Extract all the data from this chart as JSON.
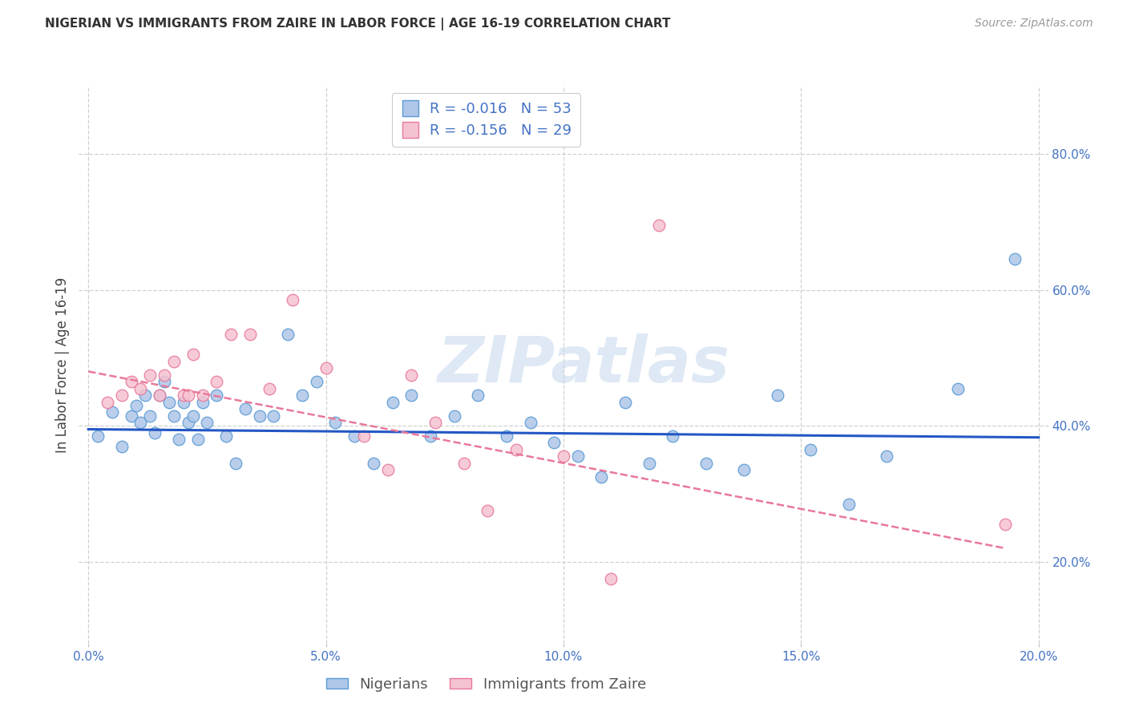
{
  "title": "NIGERIAN VS IMMIGRANTS FROM ZAIRE IN LABOR FORCE | AGE 16-19 CORRELATION CHART",
  "source": "Source: ZipAtlas.com",
  "ylabel": "In Labor Force | Age 16-19",
  "xlim": [
    -0.002,
    0.202
  ],
  "ylim": [
    0.08,
    0.9
  ],
  "xticks": [
    0.0,
    0.05,
    0.1,
    0.15,
    0.2
  ],
  "yticks": [
    0.2,
    0.4,
    0.6,
    0.8
  ],
  "xticklabels": [
    "0.0%",
    "5.0%",
    "10.0%",
    "15.0%",
    "20.0%"
  ],
  "yticklabels": [
    "20.0%",
    "40.0%",
    "60.0%",
    "80.0%"
  ],
  "blue_color": "#aec6e8",
  "blue_edge": "#5b9bd5",
  "pink_color": "#f5c2d0",
  "pink_edge": "#e8799a",
  "trend_blue": "#2457c5",
  "trend_pink": "#e8799a",
  "legend_blue_R": "R = -0.016",
  "legend_blue_N": "N = 53",
  "legend_pink_R": "R = -0.156",
  "legend_pink_N": "N = 29",
  "label_nigerians": "Nigerians",
  "label_zaire": "Immigrants from Zaire",
  "watermark": "ZIPatlas",
  "blue_x": [
    0.002,
    0.005,
    0.007,
    0.009,
    0.01,
    0.011,
    0.012,
    0.013,
    0.014,
    0.015,
    0.016,
    0.017,
    0.018,
    0.019,
    0.02,
    0.021,
    0.022,
    0.023,
    0.024,
    0.025,
    0.027,
    0.029,
    0.031,
    0.033,
    0.036,
    0.039,
    0.042,
    0.045,
    0.048,
    0.052,
    0.056,
    0.06,
    0.064,
    0.068,
    0.072,
    0.077,
    0.082,
    0.088,
    0.093,
    0.098,
    0.103,
    0.108,
    0.113,
    0.118,
    0.123,
    0.13,
    0.138,
    0.145,
    0.152,
    0.16,
    0.168,
    0.183,
    0.195
  ],
  "blue_y": [
    0.385,
    0.42,
    0.37,
    0.415,
    0.43,
    0.405,
    0.445,
    0.415,
    0.39,
    0.445,
    0.465,
    0.435,
    0.415,
    0.38,
    0.435,
    0.405,
    0.415,
    0.38,
    0.435,
    0.405,
    0.445,
    0.385,
    0.345,
    0.425,
    0.415,
    0.415,
    0.535,
    0.445,
    0.465,
    0.405,
    0.385,
    0.345,
    0.435,
    0.445,
    0.385,
    0.415,
    0.445,
    0.385,
    0.405,
    0.375,
    0.355,
    0.325,
    0.435,
    0.345,
    0.385,
    0.345,
    0.335,
    0.445,
    0.365,
    0.285,
    0.355,
    0.455,
    0.645
  ],
  "pink_x": [
    0.004,
    0.007,
    0.009,
    0.011,
    0.013,
    0.015,
    0.016,
    0.018,
    0.02,
    0.021,
    0.022,
    0.024,
    0.027,
    0.03,
    0.034,
    0.038,
    0.043,
    0.05,
    0.058,
    0.063,
    0.068,
    0.073,
    0.079,
    0.084,
    0.09,
    0.1,
    0.11,
    0.12,
    0.193
  ],
  "pink_y": [
    0.435,
    0.445,
    0.465,
    0.455,
    0.475,
    0.445,
    0.475,
    0.495,
    0.445,
    0.445,
    0.505,
    0.445,
    0.465,
    0.535,
    0.535,
    0.455,
    0.585,
    0.485,
    0.385,
    0.335,
    0.475,
    0.405,
    0.345,
    0.275,
    0.365,
    0.355,
    0.175,
    0.695,
    0.255
  ],
  "blue_trend_x": [
    0.0,
    0.2
  ],
  "blue_trend_y": [
    0.395,
    0.383
  ],
  "pink_trend_x": [
    0.0,
    0.193
  ],
  "pink_trend_y": [
    0.48,
    0.22
  ],
  "marker_size": 110,
  "grid_color": "#d0d0d0",
  "bg_color": "#ffffff",
  "title_color": "#333333",
  "axis_color": "#4472c4",
  "tick_color": "#4472c4"
}
